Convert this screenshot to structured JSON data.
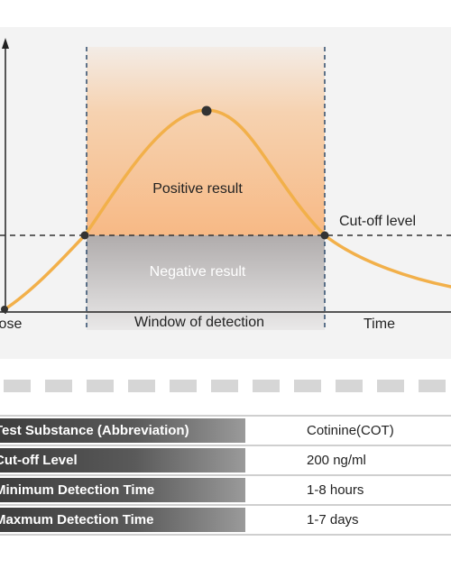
{
  "diagram": {
    "labels": {
      "dose": "Dose",
      "window": "Window of detection",
      "time": "Time",
      "positive": "Positive result",
      "negative": "Negative result",
      "cutoff": "Cut-off level"
    },
    "colors": {
      "curve": "#f2b04a",
      "positive_zone": "#f7bf8c",
      "negative_zone": "#b3b0b0",
      "window_lines": "#2d4a6b"
    }
  },
  "separator": {
    "dash_count": 11
  },
  "specs": {
    "rows": [
      {
        "label": "Test Substance (Abbreviation)",
        "value": "Cotinine(COT)"
      },
      {
        "label": "Cut-off Level",
        "value": "200 ng/ml"
      },
      {
        "label": "Minimum Detection Time",
        "value": "1-8 hours"
      },
      {
        "label": "Maxmum Detection Time",
        "value": "1-7 days"
      }
    ]
  }
}
